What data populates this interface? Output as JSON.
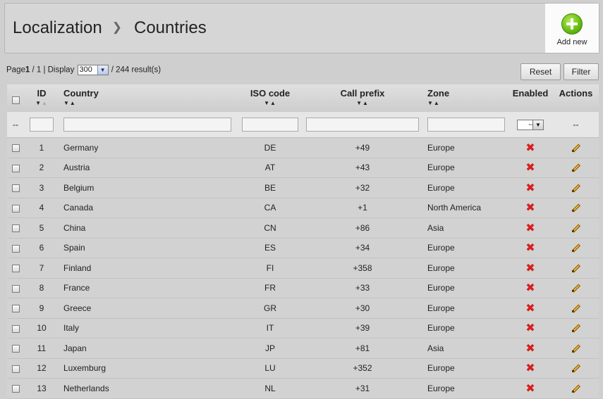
{
  "header": {
    "breadcrumb_parent": "Localization",
    "breadcrumb_current": "Countries",
    "add_new_label": "Add new"
  },
  "pager": {
    "page_word": "Page",
    "page_current": "1",
    "page_rest": " / 1 | Display",
    "display_value": "300",
    "results_text": "/ 244 result(s)"
  },
  "buttons": {
    "reset": "Reset",
    "filter": "Filter"
  },
  "columns": {
    "id": "ID",
    "country": "Country",
    "iso": "ISO code",
    "prefix": "Call prefix",
    "zone": "Zone",
    "enabled": "Enabled",
    "actions": "Actions"
  },
  "filters": {
    "leading": "--",
    "enabled_select": "--",
    "actions": "--"
  },
  "rows": [
    {
      "id": "1",
      "country": "Germany",
      "iso": "DE",
      "prefix": "+49",
      "zone": "Europe"
    },
    {
      "id": "2",
      "country": "Austria",
      "iso": "AT",
      "prefix": "+43",
      "zone": "Europe"
    },
    {
      "id": "3",
      "country": "Belgium",
      "iso": "BE",
      "prefix": "+32",
      "zone": "Europe"
    },
    {
      "id": "4",
      "country": "Canada",
      "iso": "CA",
      "prefix": "+1",
      "zone": "North America"
    },
    {
      "id": "5",
      "country": "China",
      "iso": "CN",
      "prefix": "+86",
      "zone": "Asia"
    },
    {
      "id": "6",
      "country": "Spain",
      "iso": "ES",
      "prefix": "+34",
      "zone": "Europe"
    },
    {
      "id": "7",
      "country": "Finland",
      "iso": "FI",
      "prefix": "+358",
      "zone": "Europe"
    },
    {
      "id": "8",
      "country": "France",
      "iso": "FR",
      "prefix": "+33",
      "zone": "Europe"
    },
    {
      "id": "9",
      "country": "Greece",
      "iso": "GR",
      "prefix": "+30",
      "zone": "Europe"
    },
    {
      "id": "10",
      "country": "Italy",
      "iso": "IT",
      "prefix": "+39",
      "zone": "Europe"
    },
    {
      "id": "11",
      "country": "Japan",
      "iso": "JP",
      "prefix": "+81",
      "zone": "Asia"
    },
    {
      "id": "12",
      "country": "Luxemburg",
      "iso": "LU",
      "prefix": "+352",
      "zone": "Europe"
    },
    {
      "id": "13",
      "country": "Netherlands",
      "iso": "NL",
      "prefix": "+31",
      "zone": "Europe"
    }
  ],
  "icons": {
    "add": "plus-circle-icon",
    "enabled_state": "red-x-icon",
    "edit": "pencil-icon"
  },
  "colors": {
    "add_green": "#6cbf14",
    "disabled_red": "#d81e1e"
  }
}
